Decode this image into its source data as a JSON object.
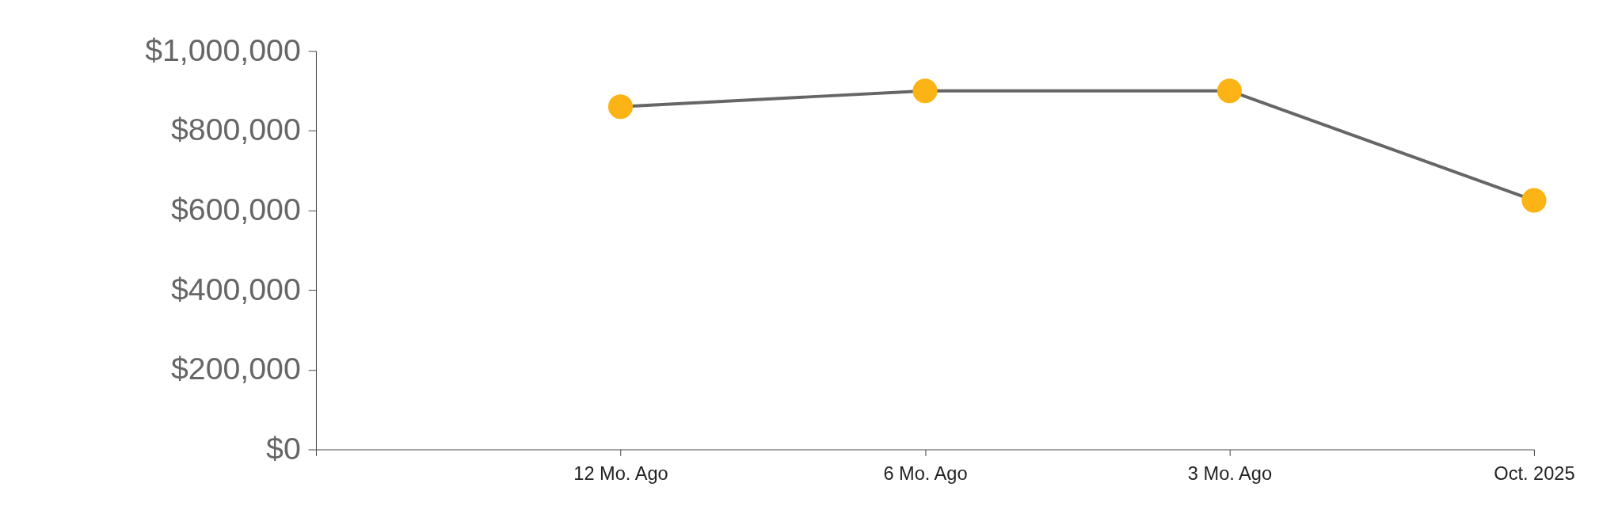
{
  "chart_data": {
    "type": "line",
    "categories": [
      null,
      "12 Mo. Ago",
      "6 Mo. Ago",
      "3 Mo. Ago",
      "Oct. 2025"
    ],
    "series": [
      {
        "color": "#fcb316",
        "values": [
          null,
          860000,
          900000,
          900000,
          625000
        ]
      }
    ],
    "ylim": [
      0,
      1000000
    ],
    "yticks": [
      {
        "value": 0,
        "label": "$0"
      },
      {
        "value": 200000,
        "label": "$200,000"
      },
      {
        "value": 400000,
        "label": "$400,000"
      },
      {
        "value": 600000,
        "label": "$600,000"
      },
      {
        "value": 800000,
        "label": "$800,000"
      },
      {
        "value": 1000000,
        "label": "$1,000,000"
      }
    ],
    "grid": false,
    "marker": "circle",
    "line_style": "solid"
  }
}
